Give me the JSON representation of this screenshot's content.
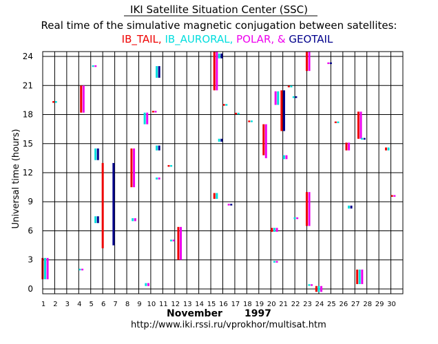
{
  "chart_data": {
    "type": "scatter",
    "title": "IKI Satellite Situation Center (SSC)",
    "subtitle": "Real time of the simulative magnetic conjugation between satellites:",
    "ylabel": "Universal time (hours)",
    "month_label": "November",
    "year_label": "1997",
    "url": "http://www.iki.rssi.ru/vprokhor/multisat.htm",
    "xlim": [
      1,
      31
    ],
    "ylim": [
      -0.5,
      24.5
    ],
    "x_ticks": [
      "1",
      "2",
      "3",
      "4",
      "5",
      "6",
      "7",
      "8",
      "9",
      "10",
      "11",
      "12",
      "13",
      "14",
      "15",
      "16",
      "17",
      "18",
      "19",
      "20",
      "21",
      "22",
      "23",
      "24",
      "25",
      "26",
      "27",
      "28",
      "29",
      "30"
    ],
    "y_ticks": [
      0,
      3,
      6,
      9,
      12,
      15,
      18,
      21,
      24
    ],
    "grid": true,
    "legend_placement": "top-center",
    "series": [
      {
        "name": "IB_TAIL",
        "color": "#ee0000",
        "separator": ", "
      },
      {
        "name": "IB_AURORAL",
        "color": "#00dddd",
        "separator": ", "
      },
      {
        "name": "POLAR",
        "color": "#ee00ee",
        "separator": ", & "
      },
      {
        "name": "GEOTAIL",
        "color": "#00008b",
        "separator": ""
      }
    ],
    "events": [
      {
        "x": 1.2,
        "y0": 1.0,
        "y1": 3.2,
        "colors": [
          "#ee0000",
          "#00dddd",
          "#ee00ee"
        ]
      },
      {
        "x": 2.0,
        "y0": 19.3,
        "y1": 19.3,
        "colors": [
          "#ee0000",
          "#00dddd"
        ]
      },
      {
        "x": 4.2,
        "y0": 2.0,
        "y1": 2.0,
        "colors": [
          "#00dddd",
          "#ee00ee"
        ]
      },
      {
        "x": 4.3,
        "y0": 18.2,
        "y1": 21.0,
        "colors": [
          "#ee0000",
          "#ee00ee"
        ]
      },
      {
        "x": 5.3,
        "y0": 23.0,
        "y1": 23.0,
        "colors": [
          "#00dddd",
          "#ee00ee"
        ]
      },
      {
        "x": 5.5,
        "y0": 13.3,
        "y1": 14.5,
        "colors": [
          "#00dddd",
          "#00008b"
        ]
      },
      {
        "x": 5.5,
        "y0": 6.8,
        "y1": 7.5,
        "colors": [
          "#00dddd",
          "#00008b"
        ]
      },
      {
        "x": 6.0,
        "y0": 4.2,
        "y1": 13.0,
        "colors": [
          "#ee0000"
        ]
      },
      {
        "x": 6.9,
        "y0": 4.5,
        "y1": 13.0,
        "colors": [
          "#00008b"
        ]
      },
      {
        "x": 8.5,
        "y0": 10.5,
        "y1": 14.5,
        "colors": [
          "#ee0000",
          "#ee00ee"
        ]
      },
      {
        "x": 8.6,
        "y0": 7.0,
        "y1": 7.3,
        "colors": [
          "#00dddd",
          "#ee00ee"
        ]
      },
      {
        "x": 9.6,
        "y0": 17.0,
        "y1": 18.2,
        "colors": [
          "#00dddd",
          "#ee00ee"
        ]
      },
      {
        "x": 9.7,
        "y0": 0.3,
        "y1": 0.6,
        "colors": [
          "#00dddd",
          "#ee00ee"
        ]
      },
      {
        "x": 10.3,
        "y0": 18.3,
        "y1": 18.3,
        "colors": [
          "#ee0000",
          "#ee00ee"
        ]
      },
      {
        "x": 10.6,
        "y0": 21.8,
        "y1": 23.0,
        "colors": [
          "#00dddd",
          "#00008b"
        ]
      },
      {
        "x": 10.6,
        "y0": 14.3,
        "y1": 14.8,
        "colors": [
          "#00dddd",
          "#00008b"
        ]
      },
      {
        "x": 10.6,
        "y0": 11.3,
        "y1": 11.5,
        "colors": [
          "#00dddd",
          "#ee00ee"
        ]
      },
      {
        "x": 11.6,
        "y0": 12.7,
        "y1": 12.7,
        "colors": [
          "#ee0000",
          "#00dddd"
        ]
      },
      {
        "x": 11.8,
        "y0": 5.0,
        "y1": 5.0,
        "colors": [
          "#00dddd",
          "#ee00ee"
        ]
      },
      {
        "x": 12.4,
        "y0": 3.0,
        "y1": 6.4,
        "colors": [
          "#ee0000",
          "#ee00ee"
        ]
      },
      {
        "x": 15.4,
        "y0": 20.5,
        "y1": 24.5,
        "colors": [
          "#ee0000",
          "#ee00ee"
        ]
      },
      {
        "x": 15.4,
        "y0": 9.3,
        "y1": 9.9,
        "colors": [
          "#ee0000",
          "#00dddd"
        ]
      },
      {
        "x": 15.8,
        "y0": 15.2,
        "y1": 15.5,
        "colors": [
          "#00dddd",
          "#00008b"
        ]
      },
      {
        "x": 15.8,
        "y0": 23.8,
        "y1": 24.3,
        "colors": [
          "#00dddd",
          "#00008b"
        ]
      },
      {
        "x": 16.2,
        "y0": 19.0,
        "y1": 19.0,
        "colors": [
          "#ee0000",
          "#00dddd"
        ]
      },
      {
        "x": 16.6,
        "y0": 8.7,
        "y1": 8.7,
        "colors": [
          "#ee00ee",
          "#00008b"
        ]
      },
      {
        "x": 17.2,
        "y0": 18.1,
        "y1": 18.1,
        "colors": [
          "#ee0000",
          "#00dddd"
        ]
      },
      {
        "x": 18.3,
        "y0": 17.3,
        "y1": 17.3,
        "colors": [
          "#ee0000",
          "#00dddd"
        ]
      },
      {
        "x": 19.4,
        "y0": 13.8,
        "y1": 17.0,
        "colors": [
          "#ee0000"
        ]
      },
      {
        "x": 19.6,
        "y0": 13.5,
        "y1": 17.0,
        "colors": [
          "#ee00ee"
        ]
      },
      {
        "x": 20.3,
        "y0": 5.9,
        "y1": 6.3,
        "colors": [
          "#ee0000",
          "#00dddd",
          "#ee00ee"
        ]
      },
      {
        "x": 20.4,
        "y0": 2.8,
        "y1": 2.8,
        "colors": [
          "#00dddd",
          "#ee00ee"
        ]
      },
      {
        "x": 20.5,
        "y0": 19.0,
        "y1": 20.4,
        "colors": [
          "#ee00ee",
          "#00dddd"
        ]
      },
      {
        "x": 21.0,
        "y0": 16.3,
        "y1": 20.5,
        "colors": [
          "#ee0000",
          "#00008b"
        ]
      },
      {
        "x": 21.2,
        "y0": 13.4,
        "y1": 13.8,
        "colors": [
          "#00dddd",
          "#ee00ee"
        ]
      },
      {
        "x": 21.6,
        "y0": 20.9,
        "y1": 20.9,
        "colors": [
          "#ee0000",
          "#00dddd"
        ]
      },
      {
        "x": 22.0,
        "y0": 19.8,
        "y1": 19.8,
        "colors": [
          "#00dddd",
          "#00008b"
        ]
      },
      {
        "x": 22.1,
        "y0": 7.3,
        "y1": 7.3,
        "colors": [
          "#00dddd",
          "#ee00ee"
        ]
      },
      {
        "x": 23.1,
        "y0": 22.5,
        "y1": 24.5,
        "colors": [
          "#ee0000",
          "#ee00ee"
        ]
      },
      {
        "x": 23.1,
        "y0": 6.5,
        "y1": 10.0,
        "colors": [
          "#ee0000",
          "#ee00ee"
        ]
      },
      {
        "x": 23.3,
        "y0": 0.4,
        "y1": 0.4,
        "colors": [
          "#00dddd",
          "#ee00ee"
        ]
      },
      {
        "x": 24.0,
        "y0": -0.3,
        "y1": 0.3,
        "colors": [
          "#ee0000",
          "#00dddd",
          "#ee00ee"
        ]
      },
      {
        "x": 24.9,
        "y0": 23.3,
        "y1": 23.3,
        "colors": [
          "#ee00ee",
          "#00008b"
        ]
      },
      {
        "x": 25.5,
        "y0": 17.2,
        "y1": 17.2,
        "colors": [
          "#ee0000",
          "#00dddd"
        ]
      },
      {
        "x": 26.4,
        "y0": 14.3,
        "y1": 15.1,
        "colors": [
          "#ee0000",
          "#ee00ee"
        ]
      },
      {
        "x": 26.6,
        "y0": 8.3,
        "y1": 8.6,
        "colors": [
          "#00dddd",
          "#00008b"
        ]
      },
      {
        "x": 27.4,
        "y0": 15.5,
        "y1": 18.3,
        "colors": [
          "#ee0000",
          "#ee00ee"
        ]
      },
      {
        "x": 27.7,
        "y0": 15.5,
        "y1": 15.5,
        "colors": [
          "#00dddd",
          "#00008b"
        ]
      },
      {
        "x": 27.4,
        "y0": 0.5,
        "y1": 2.0,
        "colors": [
          "#ee0000",
          "#00dddd",
          "#ee00ee"
        ]
      },
      {
        "x": 29.7,
        "y0": 14.3,
        "y1": 14.6,
        "colors": [
          "#ee0000",
          "#00dddd"
        ]
      },
      {
        "x": 30.2,
        "y0": 9.6,
        "y1": 9.6,
        "colors": [
          "#ee0000",
          "#ee00ee"
        ]
      }
    ]
  }
}
